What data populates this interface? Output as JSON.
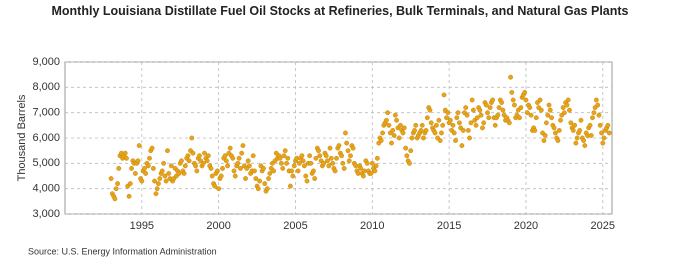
{
  "chart_data": {
    "type": "scatter",
    "title": "Monthly Louisiana Distillate Fuel Oil Stocks at Refineries, Bulk Terminals, and Natural Gas Plants",
    "ylabel": "Thousand Barrels",
    "source": "Source: U.S. Energy Information Administration",
    "color": "#e8a317",
    "grid": true,
    "xlim": [
      1990,
      2025.6
    ],
    "ylim": [
      3000,
      9000
    ],
    "xticks": [
      1995,
      2000,
      2005,
      2010,
      2015,
      2020,
      2025
    ],
    "yticks": [
      {
        "value": 3000,
        "label": "3,000"
      },
      {
        "value": 4000,
        "label": "4,000"
      },
      {
        "value": 5000,
        "label": "5,000"
      },
      {
        "value": 6000,
        "label": "6,000"
      },
      {
        "value": 7000,
        "label": "7,000"
      },
      {
        "value": 8000,
        "label": "8,000"
      },
      {
        "value": 9000,
        "label": "9,000"
      }
    ],
    "x": [
      1993,
      1993.08,
      1993.17,
      1993.25,
      1993.33,
      1993.42,
      1993.5,
      1993.58,
      1993.67,
      1993.75,
      1993.83,
      1993.92,
      1994,
      1994.08,
      1994.17,
      1994.25,
      1994.33,
      1994.42,
      1994.5,
      1994.58,
      1994.67,
      1994.75,
      1994.83,
      1994.92,
      1995,
      1995.08,
      1995.17,
      1995.25,
      1995.33,
      1995.42,
      1995.5,
      1995.58,
      1995.67,
      1995.75,
      1995.83,
      1995.92,
      1996,
      1996.08,
      1996.17,
      1996.25,
      1996.33,
      1996.42,
      1996.5,
      1996.58,
      1996.67,
      1996.75,
      1996.83,
      1996.92,
      1997,
      1997.08,
      1997.17,
      1997.25,
      1997.33,
      1997.42,
      1997.5,
      1997.58,
      1997.67,
      1997.75,
      1997.83,
      1997.92,
      1998,
      1998.08,
      1998.17,
      1998.25,
      1998.33,
      1998.42,
      1998.5,
      1998.58,
      1998.67,
      1998.75,
      1998.83,
      1998.92,
      1999,
      1999.08,
      1999.17,
      1999.25,
      1999.33,
      1999.42,
      1999.5,
      1999.58,
      1999.67,
      1999.75,
      1999.83,
      1999.92,
      2000,
      2000.08,
      2000.17,
      2000.25,
      2000.33,
      2000.42,
      2000.5,
      2000.58,
      2000.67,
      2000.75,
      2000.83,
      2000.92,
      2001,
      2001.08,
      2001.17,
      2001.25,
      2001.33,
      2001.42,
      2001.5,
      2001.58,
      2001.67,
      2001.75,
      2001.83,
      2001.92,
      2002,
      2002.08,
      2002.17,
      2002.25,
      2002.33,
      2002.42,
      2002.5,
      2002.58,
      2002.67,
      2002.75,
      2002.83,
      2002.92,
      2003,
      2003.08,
      2003.17,
      2003.25,
      2003.33,
      2003.42,
      2003.5,
      2003.58,
      2003.67,
      2003.75,
      2003.83,
      2003.92,
      2004,
      2004.08,
      2004.17,
      2004.25,
      2004.33,
      2004.42,
      2004.5,
      2004.58,
      2004.67,
      2004.75,
      2004.83,
      2004.92,
      2005,
      2005.08,
      2005.17,
      2005.25,
      2005.33,
      2005.42,
      2005.5,
      2005.58,
      2005.67,
      2005.75,
      2005.83,
      2005.92,
      2006,
      2006.08,
      2006.17,
      2006.25,
      2006.33,
      2006.42,
      2006.5,
      2006.58,
      2006.67,
      2006.75,
      2006.83,
      2006.92,
      2007,
      2007.08,
      2007.17,
      2007.25,
      2007.33,
      2007.42,
      2007.5,
      2007.58,
      2007.67,
      2007.75,
      2007.83,
      2007.92,
      2008,
      2008.08,
      2008.17,
      2008.25,
      2008.33,
      2008.42,
      2008.5,
      2008.58,
      2008.67,
      2008.75,
      2008.83,
      2008.92,
      2009,
      2009.08,
      2009.17,
      2009.25,
      2009.33,
      2009.42,
      2009.5,
      2009.58,
      2009.67,
      2009.75,
      2009.83,
      2009.92,
      2010,
      2010.08,
      2010.17,
      2010.25,
      2010.33,
      2010.42,
      2010.5,
      2010.58,
      2010.67,
      2010.75,
      2010.83,
      2010.92,
      2011,
      2011.08,
      2011.17,
      2011.25,
      2011.33,
      2011.42,
      2011.5,
      2011.58,
      2011.67,
      2011.75,
      2011.83,
      2011.92,
      2012,
      2012.08,
      2012.17,
      2012.25,
      2012.33,
      2012.42,
      2012.5,
      2012.58,
      2012.67,
      2012.75,
      2012.83,
      2012.92,
      2013,
      2013.08,
      2013.17,
      2013.25,
      2013.33,
      2013.42,
      2013.5,
      2013.58,
      2013.67,
      2013.75,
      2013.83,
      2013.92,
      2014,
      2014.08,
      2014.17,
      2014.25,
      2014.33,
      2014.42,
      2014.5,
      2014.58,
      2014.67,
      2014.75,
      2014.83,
      2014.92,
      2015,
      2015.08,
      2015.17,
      2015.25,
      2015.33,
      2015.42,
      2015.5,
      2015.58,
      2015.67,
      2015.75,
      2015.83,
      2015.92,
      2016,
      2016.08,
      2016.17,
      2016.25,
      2016.33,
      2016.42,
      2016.5,
      2016.58,
      2016.67,
      2016.75,
      2016.83,
      2016.92,
      2017,
      2017.08,
      2017.17,
      2017.25,
      2017.33,
      2017.42,
      2017.5,
      2017.58,
      2017.67,
      2017.75,
      2017.83,
      2017.92,
      2018,
      2018.08,
      2018.17,
      2018.25,
      2018.33,
      2018.42,
      2018.5,
      2018.58,
      2018.67,
      2018.75,
      2018.83,
      2018.92,
      2019,
      2019.08,
      2019.17,
      2019.25,
      2019.33,
      2019.42,
      2019.5,
      2019.58,
      2019.67,
      2019.75,
      2019.83,
      2019.92,
      2020,
      2020.08,
      2020.17,
      2020.25,
      2020.33,
      2020.42,
      2020.5,
      2020.58,
      2020.67,
      2020.75,
      2020.83,
      2020.92,
      2021,
      2021.08,
      2021.17,
      2021.25,
      2021.33,
      2021.42,
      2021.5,
      2021.58,
      2021.67,
      2021.75,
      2021.83,
      2021.92,
      2022,
      2022.08,
      2022.17,
      2022.25,
      2022.33,
      2022.42,
      2022.5,
      2022.58,
      2022.67,
      2022.75,
      2022.83,
      2022.92,
      2023,
      2023.08,
      2023.17,
      2023.25,
      2023.33,
      2023.42,
      2023.5,
      2023.58,
      2023.67,
      2023.75,
      2023.83,
      2023.92,
      2024,
      2024.08,
      2024.17,
      2024.25,
      2024.33,
      2024.42,
      2024.5,
      2024.58,
      2024.67,
      2024.75,
      2024.83,
      2024.92,
      2025,
      2025.08,
      2025.17,
      2025.25,
      2025.33,
      2025.42
    ],
    "values": [
      4400,
      3800,
      3700,
      3600,
      4000,
      4200,
      4800,
      5300,
      5400,
      5200,
      5300,
      5400,
      5200,
      4100,
      3700,
      4200,
      4800,
      5100,
      5000,
      4600,
      5000,
      5100,
      5700,
      4400,
      4300,
      4700,
      4800,
      4600,
      5000,
      4900,
      5200,
      5500,
      5600,
      4800,
      4300,
      3800,
      4000,
      4200,
      4400,
      4600,
      4700,
      5000,
      4500,
      4300,
      5500,
      4600,
      4400,
      4900,
      4300,
      4400,
      4800,
      4500,
      4700,
      4600,
      5000,
      5100,
      4700,
      4600,
      4900,
      5200,
      5300,
      5100,
      5500,
      6000,
      5400,
      5000,
      4900,
      4700,
      5200,
      5300,
      5100,
      4900,
      5000,
      5400,
      5200,
      5100,
      5300,
      4900,
      4800,
      4500,
      4200,
      4100,
      4600,
      4700,
      4000,
      4400,
      4500,
      4800,
      5200,
      5300,
      5100,
      4900,
      5400,
      5600,
      5300,
      5200,
      4700,
      4500,
      4900,
      5000,
      5200,
      4800,
      5400,
      5700,
      4900,
      4400,
      4800,
      5100,
      4900,
      4600,
      4700,
      5300,
      4700,
      4400,
      4100,
      4000,
      4300,
      4900,
      4700,
      4800,
      4200,
      3900,
      4000,
      4400,
      4600,
      4800,
      5000,
      4700,
      5100,
      5400,
      5200,
      5300,
      5200,
      5000,
      4800,
      5300,
      5500,
      5000,
      5200,
      4700,
      4100,
      4700,
      4500,
      4900,
      5100,
      5200,
      4700,
      5000,
      5200,
      5300,
      5100,
      4900,
      4500,
      4300,
      5000,
      5300,
      5000,
      4600,
      4700,
      4400,
      5200,
      5600,
      5500,
      5300,
      5100,
      4900,
      5000,
      5400,
      5300,
      5100,
      4900,
      5600,
      5200,
      5000,
      4800,
      4700,
      5200,
      5600,
      5700,
      5400,
      5300,
      5000,
      4800,
      6200,
      5800,
      5500,
      5100,
      5300,
      5700,
      5600,
      5000,
      4900,
      4700,
      4600,
      4900,
      4800,
      4600,
      4500,
      4700,
      5100,
      5000,
      4700,
      4600,
      4600,
      5000,
      4800,
      4700,
      4900,
      5200,
      5800,
      6000,
      5900,
      6200,
      6500,
      6600,
      6700,
      7000,
      6500,
      6200,
      5800,
      6300,
      6100,
      6900,
      6700,
      6400,
      6000,
      6500,
      6300,
      6200,
      6400,
      5600,
      5300,
      5100,
      5000,
      5500,
      6000,
      6200,
      6300,
      6500,
      6000,
      6100,
      6200,
      6300,
      6500,
      6000,
      6200,
      6300,
      6800,
      7200,
      7100,
      6600,
      6400,
      6300,
      6200,
      6500,
      6000,
      6700,
      5900,
      6200,
      6500,
      7700,
      7100,
      6800,
      7000,
      6600,
      6700,
      6300,
      6500,
      6200,
      5900,
      6800,
      7000,
      6600,
      6400,
      5700,
      6300,
      7000,
      7200,
      6900,
      6300,
      6000,
      6600,
      7500,
      7100,
      6700,
      6500,
      6800,
      7200,
      7100,
      6900,
      6400,
      6600,
      7400,
      7300,
      7000,
      6800,
      7200,
      7400,
      7500,
      6800,
      6500,
      6800,
      6900,
      7200,
      7500,
      7400,
      7100,
      6900,
      6700,
      6800,
      6700,
      6600,
      8400,
      7800,
      7500,
      7300,
      6800,
      6900,
      7100,
      6800,
      7200,
      7600,
      7700,
      7800,
      7500,
      7000,
      7300,
      7200,
      6900,
      6300,
      6400,
      6300,
      6800,
      7400,
      7200,
      7500,
      7100,
      6200,
      5900,
      6100,
      6600,
      6900,
      7300,
      7100,
      6800,
      6500,
      6400,
      6200,
      6000,
      5900,
      6300,
      6700,
      6900,
      7200,
      7000,
      7400,
      7300,
      7500,
      7100,
      6600,
      6400,
      6300,
      6500,
      5800,
      6000,
      6200,
      6300,
      6700,
      6000,
      5900,
      5700,
      6200,
      6100,
      6400,
      6500,
      6100,
      6800,
      7000,
      7200,
      7500,
      7300,
      6900,
      6500,
      6200,
      5800,
      6000,
      6300,
      6400,
      6500,
      6200
    ]
  }
}
